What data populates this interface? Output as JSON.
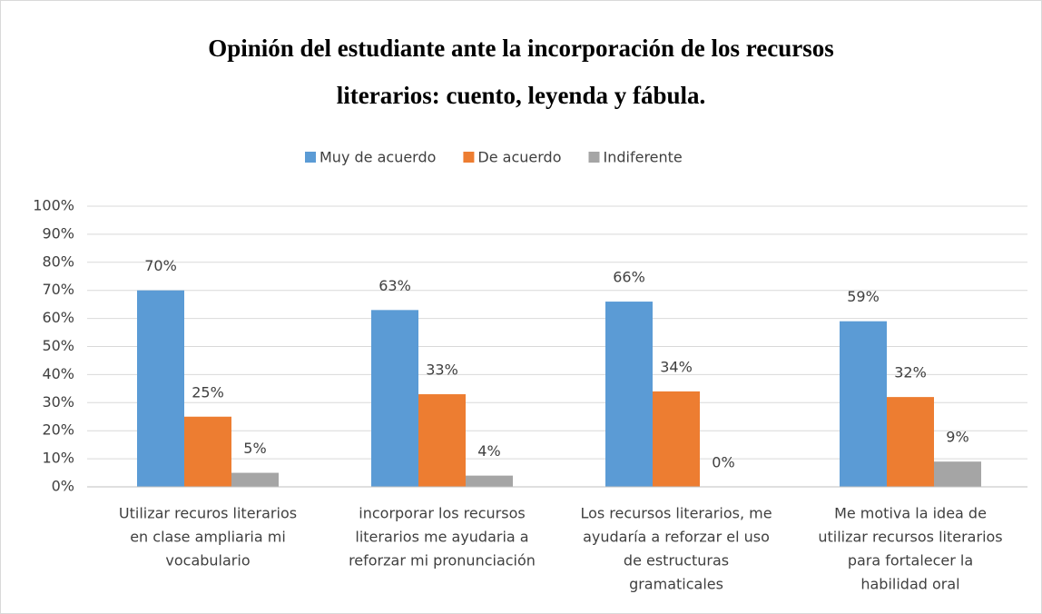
{
  "chart_data": {
    "type": "bar",
    "title": [
      "Opinión del estudiante ante la incorporación de los recursos",
      "literarios: cuento, leyenda y fábula."
    ],
    "categories": [
      [
        "Utilizar recuros literarios",
        "en clase  ampliaria mi",
        "vocabulario"
      ],
      [
        "incorporar los recursos",
        "literarios me ayudaria a",
        "reforzar mi pronunciación"
      ],
      [
        "Los recursos literarios, me",
        "ayudaría a reforzar el uso",
        "de estructuras",
        "gramaticales"
      ],
      [
        "Me motiva la idea de",
        "utilizar recursos literarios",
        "para fortalecer la",
        "habilidad oral"
      ]
    ],
    "series": [
      {
        "name": "Muy de acuerdo",
        "color": "#5b9bd5",
        "values": [
          70,
          63,
          66,
          59
        ],
        "value_labels": [
          "70%",
          "63%",
          "66%",
          "59%"
        ]
      },
      {
        "name": "De acuerdo",
        "color": "#ed7d31",
        "values": [
          25,
          33,
          34,
          32
        ],
        "value_labels": [
          "25%",
          "33%",
          "34%",
          "32%"
        ]
      },
      {
        "name": "Indiferente",
        "color": "#a5a5a5",
        "values": [
          5,
          4,
          0,
          9
        ],
        "value_labels": [
          "5%",
          "4%",
          "0%",
          "9%"
        ]
      }
    ],
    "ylim": [
      0,
      100
    ],
    "yticks": [
      {
        "value": 0,
        "label": "0%"
      },
      {
        "value": 10,
        "label": "10%"
      },
      {
        "value": 20,
        "label": "20%"
      },
      {
        "value": 30,
        "label": "30%"
      },
      {
        "value": 40,
        "label": "40%"
      },
      {
        "value": 50,
        "label": "50%"
      },
      {
        "value": 60,
        "label": "60%"
      },
      {
        "value": 70,
        "label": "70%"
      },
      {
        "value": 80,
        "label": "80%"
      },
      {
        "value": 90,
        "label": "90%"
      },
      {
        "value": 100,
        "label": "100%"
      }
    ],
    "grid": true,
    "legend": "top"
  }
}
